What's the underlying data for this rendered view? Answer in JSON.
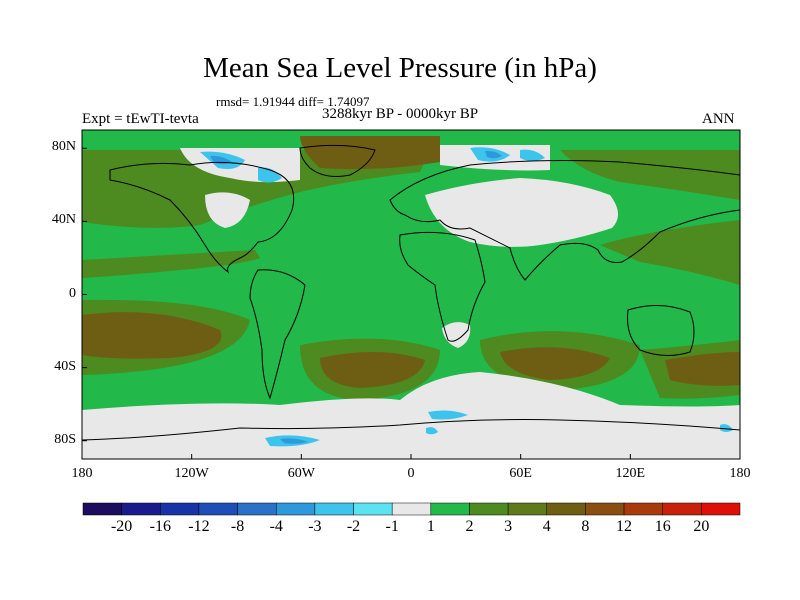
{
  "title": "Mean Sea Level Pressure (in hPa)",
  "stats": "rmsd= 1.91944 diff= 1.74097",
  "left_label": "Expt = tEwTI-tevta",
  "center_label": "3288kyr BP - 0000kyr BP",
  "right_label": "ANN",
  "lat_ticks": [
    {
      "label": "80N",
      "lat": 80
    },
    {
      "label": "40N",
      "lat": 40
    },
    {
      "label": "0",
      "lat": 0
    },
    {
      "label": "40S",
      "lat": -40
    },
    {
      "label": "80S",
      "lat": -80
    }
  ],
  "lon_ticks": [
    {
      "label": "180",
      "lon": -180
    },
    {
      "label": "120W",
      "lon": -120
    },
    {
      "label": "60W",
      "lon": -60
    },
    {
      "label": "0",
      "lon": 0
    },
    {
      "label": "60E",
      "lon": 60
    },
    {
      "label": "120E",
      "lon": 120
    },
    {
      "label": "180",
      "lon": 180
    }
  ],
  "colorbar": {
    "colors": [
      "#1c0d5e",
      "#1a1a8c",
      "#1832a8",
      "#1e4fb8",
      "#2a72c8",
      "#2e98dc",
      "#3cc4ec",
      "#5ce3f2",
      "#e8e8e8",
      "#22b84a",
      "#4d8a20",
      "#5f7a1a",
      "#6e5e14",
      "#8a4e10",
      "#a83a0c",
      "#c8200a",
      "#dc1008"
    ],
    "labels": [
      "-20",
      "-16",
      "-12",
      "-8",
      "-4",
      "-3",
      "-2",
      "-1",
      "1",
      "2",
      "3",
      "4",
      "8",
      "12",
      "16",
      "20"
    ]
  },
  "colors": {
    "base_green": "#22b84a",
    "olive": "#4d8a20",
    "brown": "#6e5e14",
    "lightgray": "#e8e8e8",
    "cyan": "#3cc4ec",
    "blue": "#2e98dc"
  }
}
